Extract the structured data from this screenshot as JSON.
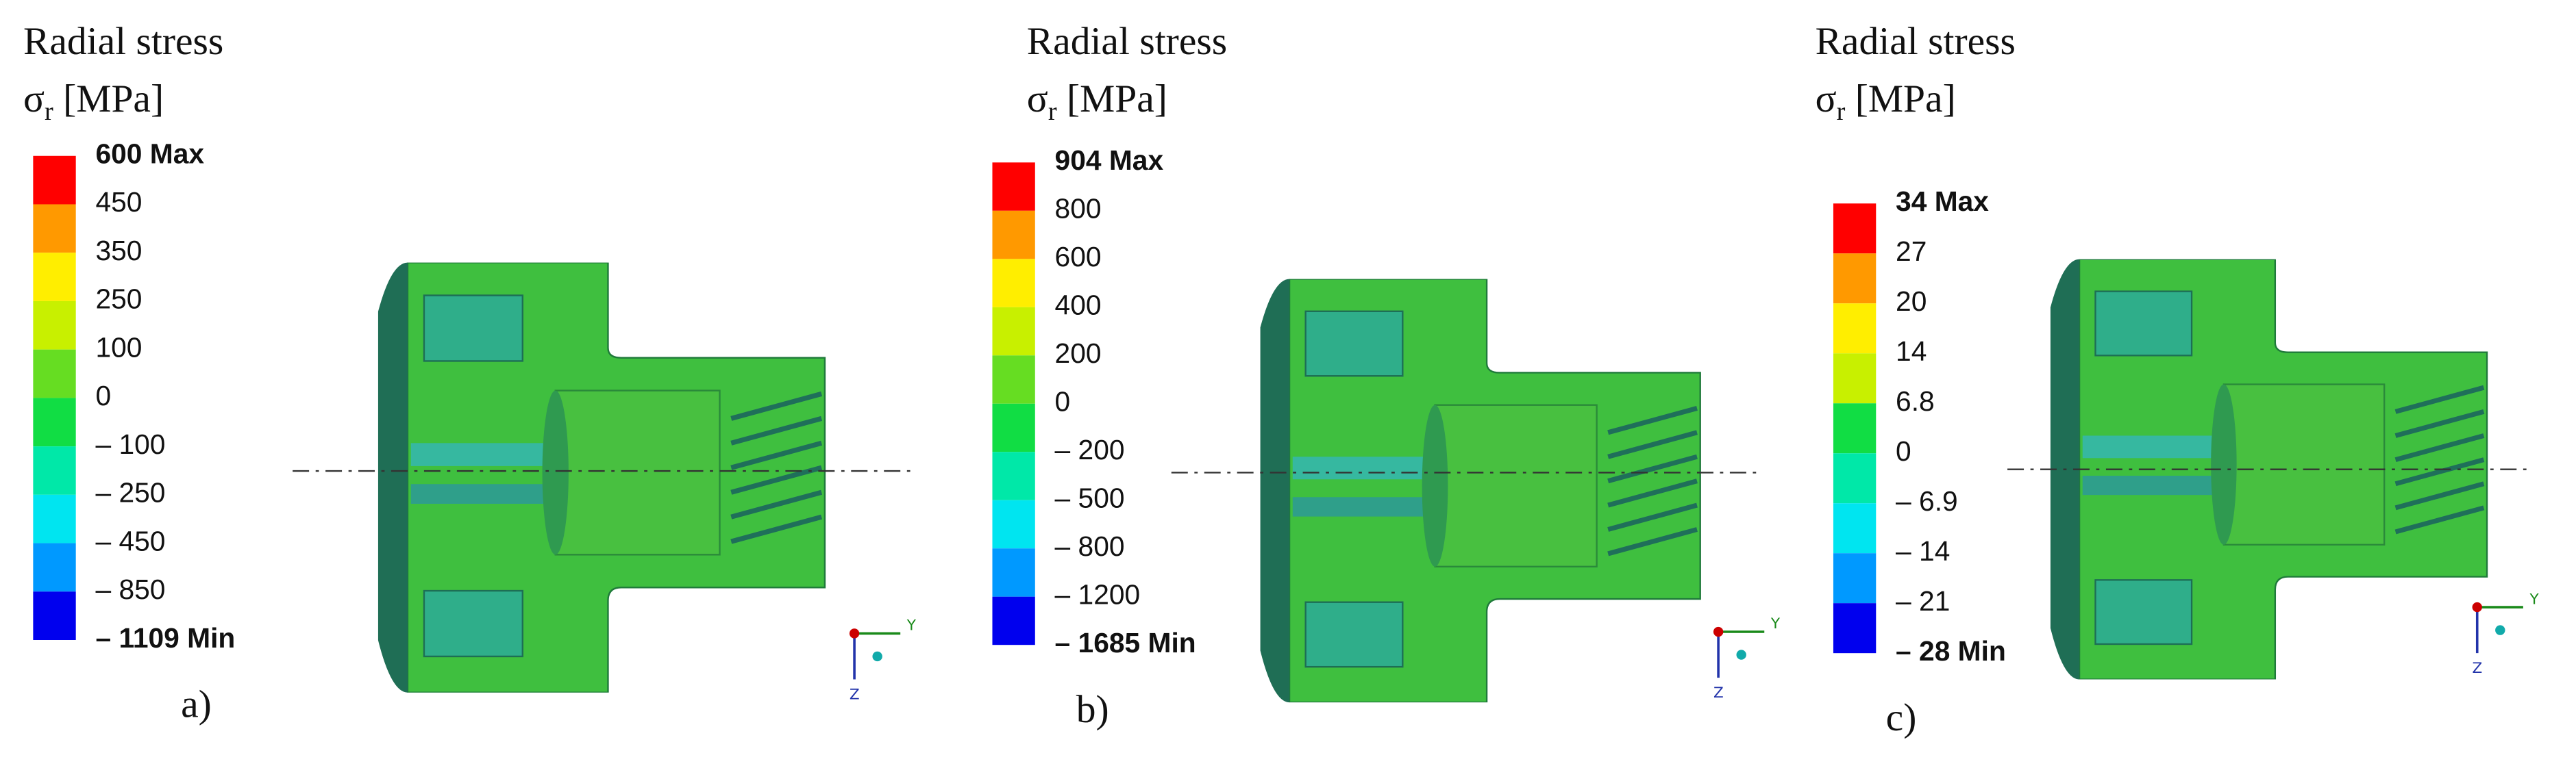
{
  "panels": [
    {
      "title": "Radial stress",
      "symbol": "σ",
      "subscript": "r",
      "unit": "[MPa]",
      "legend": [
        "600 Max",
        "450",
        "350",
        "250",
        "100",
        "0",
        "– 100",
        "– 250",
        "– 450",
        "– 850",
        "– 1109 Min"
      ],
      "caption": "a)"
    },
    {
      "title": "Radial stress",
      "symbol": "σ",
      "subscript": "r",
      "unit": "[MPa]",
      "legend": [
        "904 Max",
        "800",
        "600",
        "400",
        "200",
        "0",
        "– 200",
        "– 500",
        "– 800",
        "– 1200",
        "– 1685 Min"
      ],
      "caption": "b)"
    },
    {
      "title": "Radial stress",
      "symbol": "σ",
      "subscript": "r",
      "unit": "[MPa]",
      "legend": [
        "34 Max",
        "27",
        "20",
        "14",
        "6.8",
        "0",
        "– 6.9",
        "– 14",
        "– 21",
        "– 28 Min"
      ],
      "caption": "c)"
    }
  ]
}
